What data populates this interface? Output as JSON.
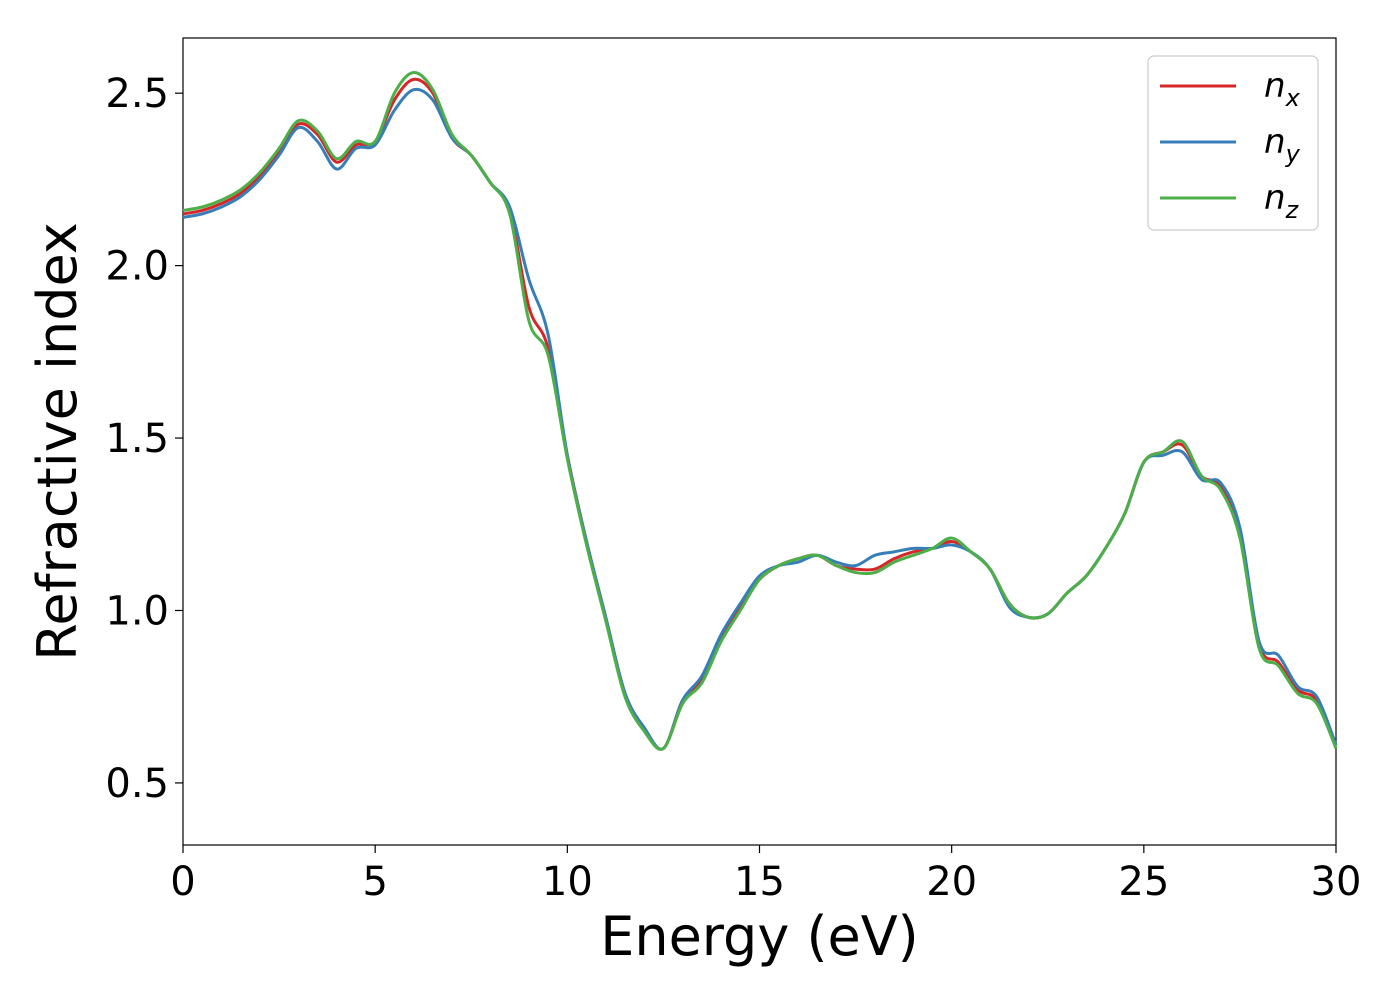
{
  "chart_data": {
    "type": "line",
    "title": "",
    "xlabel": "Energy (eV)",
    "ylabel": "Refractive index",
    "xlim": [
      0,
      30
    ],
    "ylim": [
      0.32,
      2.66
    ],
    "xticks": [
      0,
      5,
      10,
      15,
      20,
      25,
      30
    ],
    "yticks": [
      0.5,
      1.0,
      1.5,
      2.0,
      2.5
    ],
    "xtick_labels": [
      "0",
      "5",
      "10",
      "15",
      "20",
      "25",
      "30"
    ],
    "ytick_labels": [
      "0.5",
      "1.0",
      "1.5",
      "2.0",
      "2.5"
    ],
    "grid": false,
    "legend_position": "top-right",
    "x": [
      0,
      0.5,
      1,
      1.5,
      2,
      2.5,
      3,
      3.5,
      4,
      4.5,
      5,
      5.5,
      6,
      6.5,
      7,
      7.5,
      8,
      8.5,
      9,
      9.5,
      10,
      10.5,
      11,
      11.5,
      12,
      12.5,
      13,
      13.5,
      14,
      14.5,
      15,
      15.5,
      16,
      16.5,
      17,
      17.5,
      18,
      18.5,
      19,
      19.5,
      20,
      20.5,
      21,
      21.5,
      22,
      22.5,
      23,
      23.5,
      24,
      24.5,
      25,
      25.5,
      26,
      26.5,
      27,
      27.5,
      28,
      28.5,
      29,
      29.5,
      30
    ],
    "series": [
      {
        "name": "n",
        "subscript": "x",
        "color": "#d62728",
        "values": [
          2.15,
          2.16,
          2.18,
          2.21,
          2.26,
          2.33,
          2.41,
          2.38,
          2.3,
          2.35,
          2.36,
          2.48,
          2.54,
          2.5,
          2.37,
          2.32,
          2.24,
          2.16,
          1.88,
          1.76,
          1.45,
          1.2,
          0.98,
          0.76,
          0.66,
          0.6,
          0.74,
          0.8,
          0.92,
          1.01,
          1.09,
          1.13,
          1.15,
          1.16,
          1.13,
          1.12,
          1.12,
          1.15,
          1.17,
          1.18,
          1.2,
          1.17,
          1.12,
          1.02,
          0.98,
          0.99,
          1.05,
          1.1,
          1.18,
          1.28,
          1.43,
          1.46,
          1.48,
          1.39,
          1.36,
          1.22,
          0.9,
          0.85,
          0.77,
          0.74,
          0.61
        ]
      },
      {
        "name": "n",
        "subscript": "y",
        "color": "#377eb8",
        "values": [
          2.14,
          2.15,
          2.17,
          2.2,
          2.25,
          2.32,
          2.4,
          2.36,
          2.28,
          2.34,
          2.35,
          2.45,
          2.51,
          2.48,
          2.37,
          2.32,
          2.24,
          2.17,
          1.96,
          1.8,
          1.45,
          1.2,
          0.98,
          0.76,
          0.66,
          0.6,
          0.74,
          0.81,
          0.93,
          1.02,
          1.1,
          1.13,
          1.14,
          1.16,
          1.14,
          1.13,
          1.16,
          1.17,
          1.18,
          1.18,
          1.19,
          1.17,
          1.12,
          1.01,
          0.98,
          0.99,
          1.05,
          1.1,
          1.18,
          1.28,
          1.43,
          1.45,
          1.46,
          1.38,
          1.37,
          1.24,
          0.91,
          0.87,
          0.78,
          0.75,
          0.61
        ]
      },
      {
        "name": "n",
        "subscript": "z",
        "color": "#4daf4a",
        "values": [
          2.16,
          2.17,
          2.19,
          2.22,
          2.27,
          2.34,
          2.42,
          2.39,
          2.31,
          2.36,
          2.36,
          2.5,
          2.56,
          2.51,
          2.38,
          2.32,
          2.24,
          2.15,
          1.84,
          1.74,
          1.44,
          1.19,
          0.97,
          0.75,
          0.65,
          0.6,
          0.73,
          0.79,
          0.91,
          1.0,
          1.09,
          1.13,
          1.15,
          1.16,
          1.13,
          1.11,
          1.11,
          1.14,
          1.16,
          1.18,
          1.21,
          1.17,
          1.12,
          1.02,
          0.98,
          0.99,
          1.05,
          1.1,
          1.18,
          1.28,
          1.43,
          1.46,
          1.49,
          1.39,
          1.35,
          1.21,
          0.89,
          0.84,
          0.76,
          0.73,
          0.6
        ]
      }
    ]
  }
}
